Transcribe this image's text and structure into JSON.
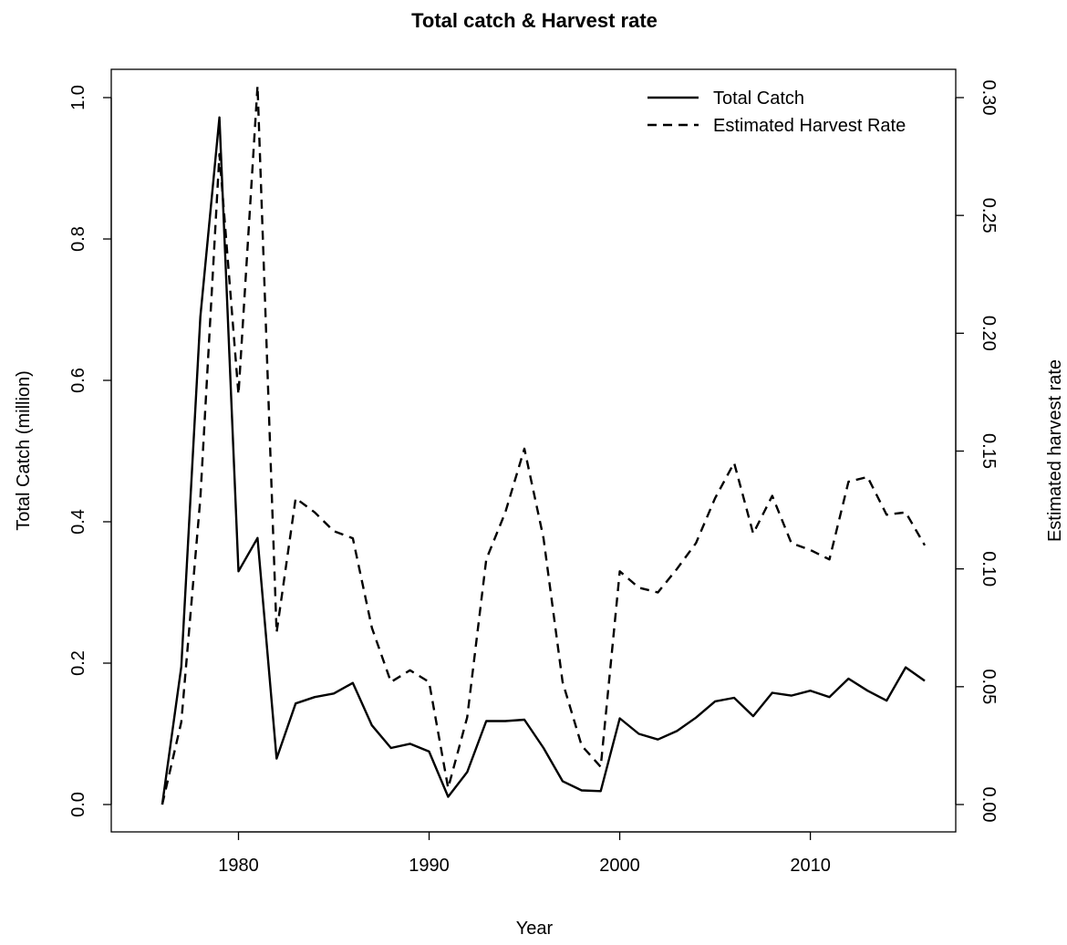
{
  "chart_data": {
    "type": "line",
    "title": "Total catch & Harvest rate",
    "xlabel": "Year",
    "ylabel_left": "Total Catch (million)",
    "ylabel_right": "Estimated harvest rate",
    "xlim": [
      1975,
      2016
    ],
    "ylim_left": [
      0,
      1.0
    ],
    "ylim_right": [
      0,
      0.3
    ],
    "x_ticks": [
      "1980",
      "1990",
      "2000",
      "2010"
    ],
    "y_ticks_left": [
      "0.0",
      "0.2",
      "0.4",
      "0.6",
      "0.8",
      "1.0"
    ],
    "y_ticks_right": [
      "0.00",
      "0.05",
      "0.10",
      "0.15",
      "0.20",
      "0.25",
      "0.30"
    ],
    "legend_position": "top-right",
    "grid": false,
    "x": [
      1976,
      1977,
      1978,
      1979,
      1980,
      1981,
      1982,
      1983,
      1984,
      1985,
      1986,
      1987,
      1988,
      1989,
      1990,
      1991,
      1992,
      1993,
      1994,
      1995,
      1996,
      1997,
      1998,
      1999,
      2000,
      2001,
      2002,
      2003,
      2004,
      2005,
      2006,
      2007,
      2008,
      2009,
      2010,
      2011,
      2012,
      2013,
      2014,
      2015,
      2016
    ],
    "series": [
      {
        "name": "Total Catch",
        "axis": "left",
        "dash": "solid",
        "values": [
          0.0,
          0.195,
          0.69,
          0.972,
          0.33,
          0.377,
          0.065,
          0.143,
          0.152,
          0.157,
          0.172,
          0.112,
          0.08,
          0.086,
          0.075,
          0.011,
          0.046,
          0.118,
          0.118,
          0.12,
          0.08,
          0.033,
          0.02,
          0.019,
          0.122,
          0.1,
          0.092,
          0.104,
          0.123,
          0.146,
          0.151,
          0.125,
          0.158,
          0.154,
          0.161,
          0.152,
          0.178,
          0.161,
          0.147,
          0.194,
          0.175
        ]
      },
      {
        "name": "Estimated Harvest Rate",
        "axis": "right",
        "dash": "dashed",
        "values": [
          0.0,
          0.035,
          0.13,
          0.276,
          0.174,
          0.305,
          0.073,
          0.13,
          0.124,
          0.116,
          0.113,
          0.075,
          0.052,
          0.057,
          0.052,
          0.007,
          0.037,
          0.104,
          0.124,
          0.151,
          0.113,
          0.052,
          0.025,
          0.016,
          0.099,
          0.092,
          0.09,
          0.1,
          0.111,
          0.13,
          0.145,
          0.115,
          0.131,
          0.111,
          0.108,
          0.104,
          0.137,
          0.139,
          0.123,
          0.124,
          0.11
        ]
      }
    ]
  }
}
